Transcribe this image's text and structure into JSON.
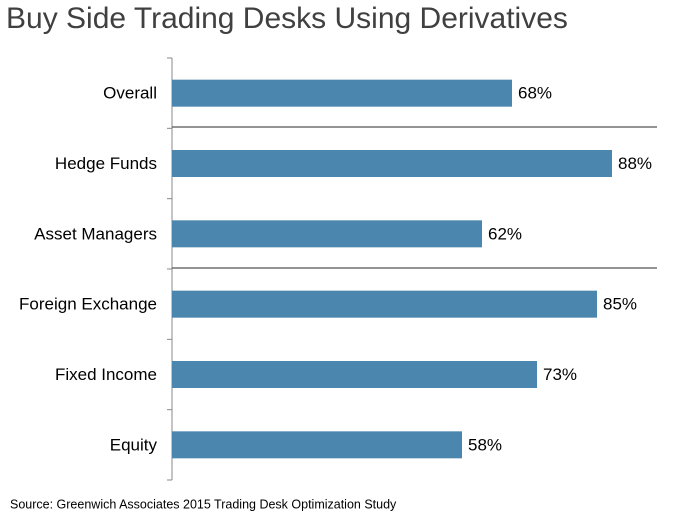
{
  "chart_data": {
    "type": "hbar",
    "title": "Buy Side Trading Desks Using Derivatives",
    "categories": [
      "Overall",
      "Hedge Funds",
      "Asset Managers",
      "Foreign Exchange",
      "Fixed Income",
      "Equity"
    ],
    "values": [
      68,
      88,
      62,
      85,
      73,
      58
    ],
    "value_labels": [
      "68%",
      "88%",
      "62%",
      "85%",
      "73%",
      "58%"
    ],
    "color": "#4a86ad",
    "xlim": [
      0,
      100
    ],
    "source": "Source: Greenwich Associates 2015 Trading Desk Optimization Study"
  }
}
